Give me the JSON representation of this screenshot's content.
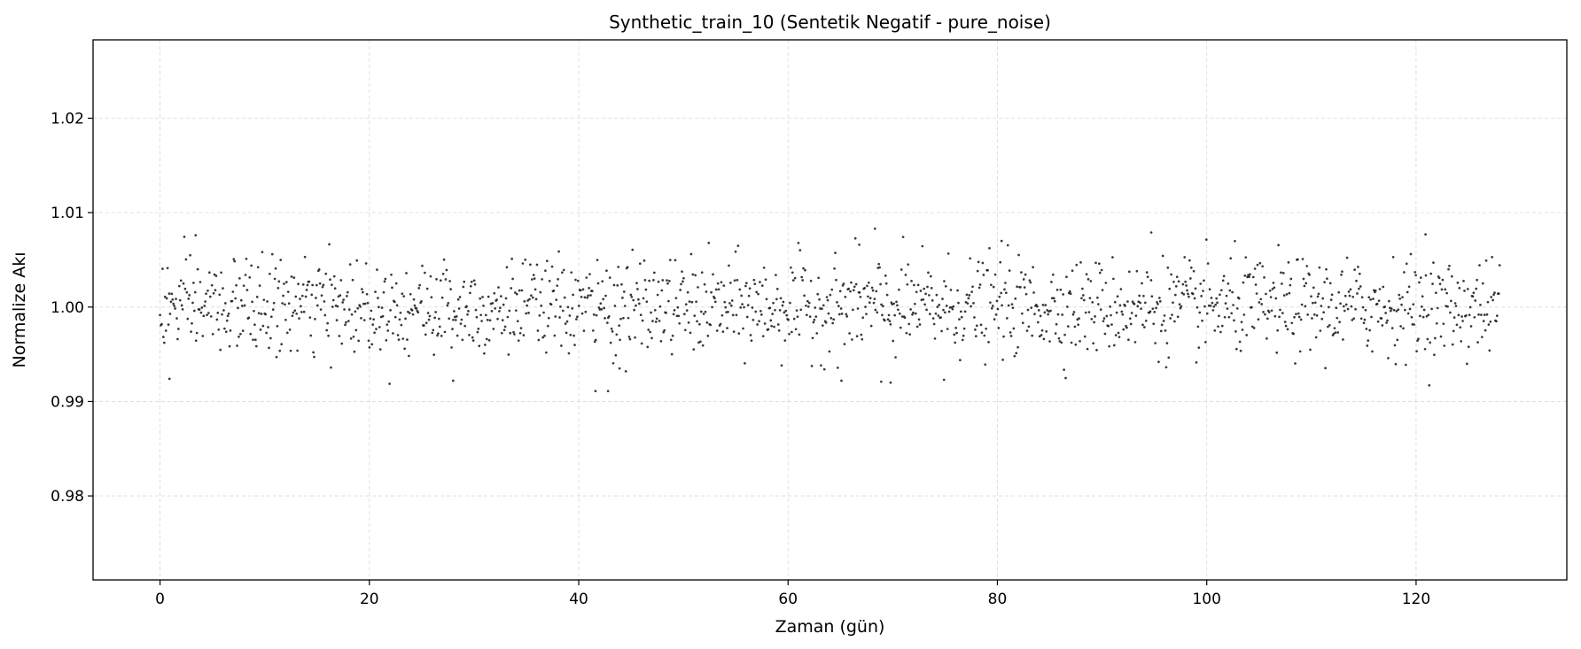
{
  "chart_data": {
    "type": "scatter",
    "title": "Synthetic_train_10 (Sentetik Negatif - pure_noise)",
    "xlabel": "Zaman (gün)",
    "ylabel": "Normalize Akı",
    "xlim": [
      -6.4,
      134.4
    ],
    "ylim": [
      0.9711,
      1.0283
    ],
    "xticks": [
      0,
      20,
      40,
      60,
      80,
      100,
      120
    ],
    "yticks": [
      0.98,
      0.99,
      1.0,
      1.01,
      1.02
    ],
    "xtick_labels": [
      "0",
      "20",
      "40",
      "60",
      "80",
      "100",
      "120"
    ],
    "ytick_labels": [
      "0.98",
      "0.99",
      "1.00",
      "1.01",
      "1.02"
    ],
    "grid": true,
    "legend": "none",
    "series": [
      {
        "color": "#222222",
        "x_start": 0,
        "x_end": 127.98,
        "n_points": 1600,
        "y_mean": 1.0,
        "y_std": 0.0025,
        "notable_points": [
          {
            "x": 0.9,
            "y": 0.9924
          },
          {
            "x": 3.4,
            "y": 1.0076
          },
          {
            "x": 28.0,
            "y": 0.9922
          },
          {
            "x": 41.6,
            "y": 0.9911
          },
          {
            "x": 42.8,
            "y": 0.9911
          },
          {
            "x": 43.9,
            "y": 0.9935
          },
          {
            "x": 65.1,
            "y": 0.9922
          },
          {
            "x": 66.8,
            "y": 1.0066
          },
          {
            "x": 68.3,
            "y": 1.0083
          },
          {
            "x": 68.9,
            "y": 0.9921
          },
          {
            "x": 69.8,
            "y": 0.992
          },
          {
            "x": 74.9,
            "y": 0.9923
          },
          {
            "x": 80.4,
            "y": 1.007
          },
          {
            "x": 94.7,
            "y": 1.0079
          },
          {
            "x": 120.9,
            "y": 1.0077
          }
        ]
      }
    ]
  }
}
